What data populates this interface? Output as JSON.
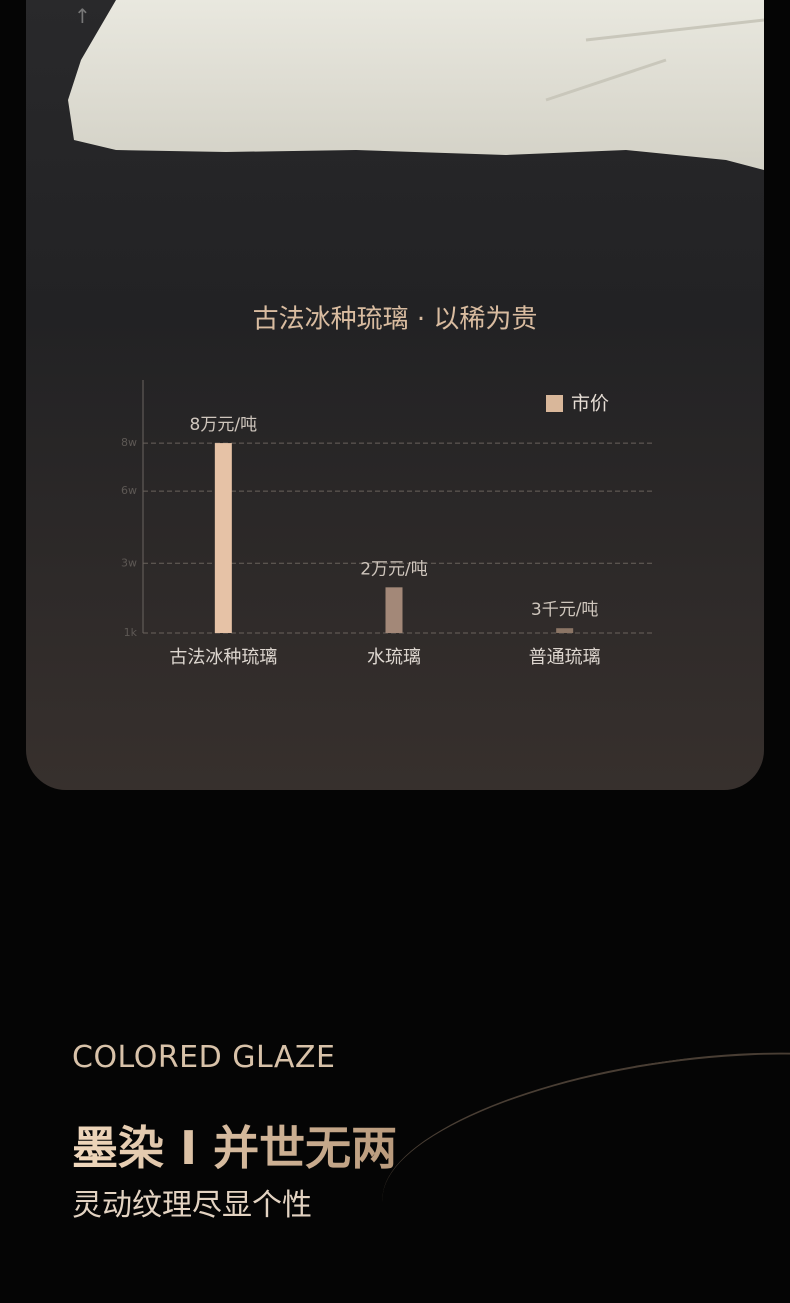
{
  "arrow": "↑",
  "chart_data": {
    "type": "bar",
    "title": "古法冰种琉璃 · 以稀为贵",
    "categories": [
      "古法冰种琉璃",
      "水琉璃",
      "普通琉璃"
    ],
    "series": [
      {
        "name": "市价",
        "color": "#d9b79a",
        "values": [
          80000,
          20000,
          3000
        ],
        "value_labels": [
          "8万元/吨",
          "2万元/吨",
          "3千元/吨"
        ]
      }
    ],
    "colors": [
      "#e6c2a6",
      "#a38878",
      "#8b7565"
    ],
    "ylim": [
      1000,
      100000
    ],
    "yticks": [
      {
        "value": 1000,
        "label": "1k"
      },
      {
        "value": 30000,
        "label": "3w"
      },
      {
        "value": 60000,
        "label": "6w"
      },
      {
        "value": 80000,
        "label": "8w"
      }
    ],
    "grid": true,
    "legend": "top-right"
  },
  "footer": {
    "subtitle": "COLORED GLAZE",
    "headline": "墨染 I 并世无两",
    "tagline": "灵动纹理尽显个性"
  }
}
